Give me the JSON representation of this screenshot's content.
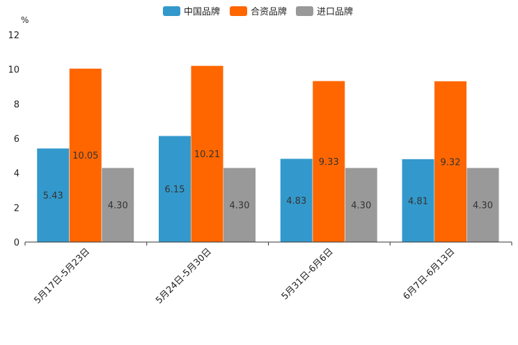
{
  "chart_data": {
    "type": "bar",
    "unit": "%",
    "ylim": [
      0,
      12
    ],
    "yticks": [
      0,
      2,
      4,
      6,
      8,
      10,
      12
    ],
    "categories": [
      "5月17日-5月23日",
      "5月24日-5月30日",
      "5月31日-6月6日",
      "6月7日-6月13日"
    ],
    "series": [
      {
        "name": "中国品牌",
        "color": "#3399cc",
        "values": [
          5.43,
          6.15,
          4.83,
          4.81
        ]
      },
      {
        "name": "合资品牌",
        "color": "#ff6600",
        "values": [
          10.05,
          10.21,
          9.33,
          9.32
        ]
      },
      {
        "name": "进口品牌",
        "color": "#999999",
        "values": [
          4.3,
          4.3,
          4.3,
          4.3
        ]
      }
    ],
    "legend_position": "top-center",
    "grid": false
  }
}
